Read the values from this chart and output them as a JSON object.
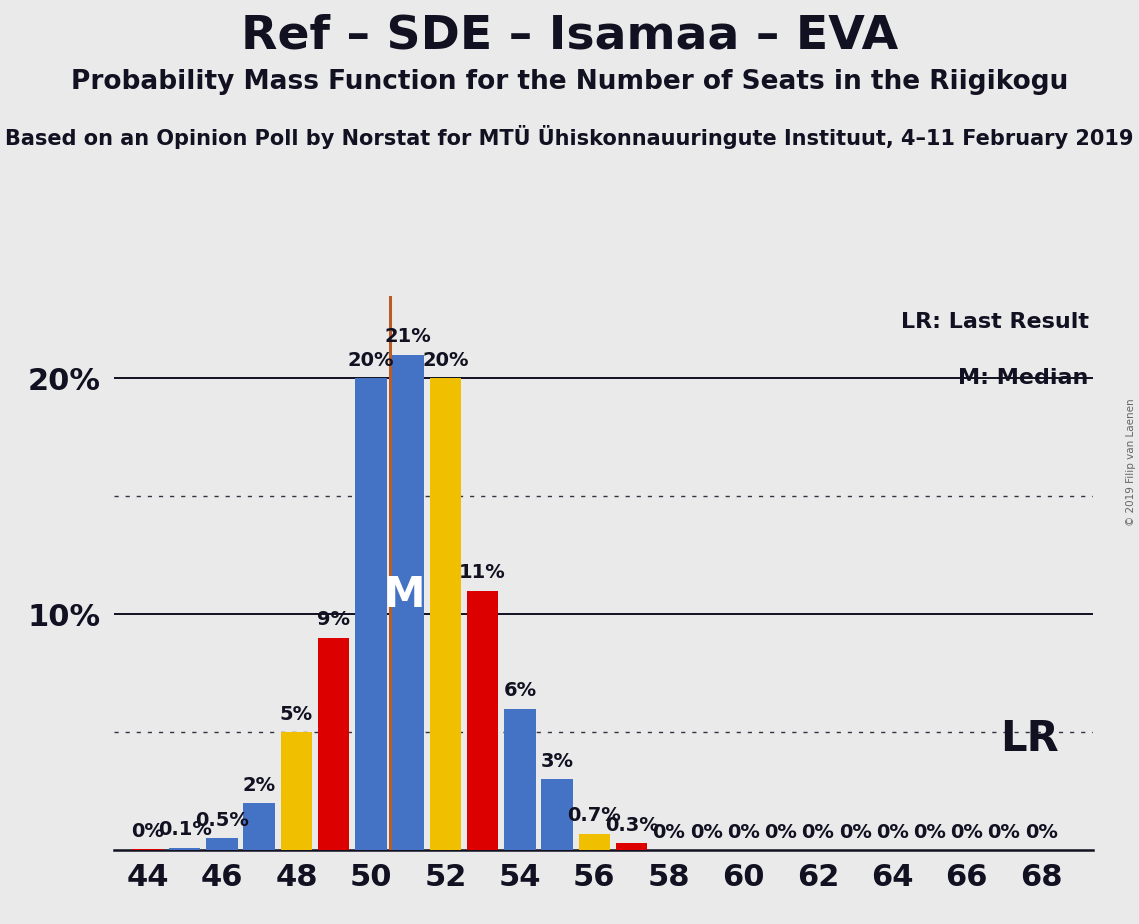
{
  "title": "Ref – SDE – Isamaa – EVA",
  "subtitle": "Probability Mass Function for the Number of Seats in the Riigikogu",
  "source_text": "Based on an Opinion Poll by Norstat for MTÜ Ühiskonnauuringute Instituut, 4–11 February 2019",
  "copyright_text": "© 2019 Filip van Laenen",
  "background_color": "#eaeaea",
  "lr_line_x": 50.5,
  "median_x": 51,
  "lr_color": "#b85c28",
  "bars": [
    {
      "x": 44,
      "value": 0.05,
      "color": "#dd0000",
      "label": "0%"
    },
    {
      "x": 45,
      "value": 0.1,
      "color": "#4472c4",
      "label": "0.1%"
    },
    {
      "x": 46,
      "value": 0.5,
      "color": "#4472c4",
      "label": "0.5%"
    },
    {
      "x": 47,
      "value": 2.0,
      "color": "#4472c4",
      "label": "2%"
    },
    {
      "x": 48,
      "value": 5.0,
      "color": "#f0c000",
      "label": "5%"
    },
    {
      "x": 49,
      "value": 9.0,
      "color": "#dd0000",
      "label": "9%"
    },
    {
      "x": 50,
      "value": 20.0,
      "color": "#4472c4",
      "label": "20%"
    },
    {
      "x": 51,
      "value": 21.0,
      "color": "#4472c4",
      "label": "21%"
    },
    {
      "x": 52,
      "value": 20.0,
      "color": "#f0c000",
      "label": "20%"
    },
    {
      "x": 53,
      "value": 11.0,
      "color": "#dd0000",
      "label": "11%"
    },
    {
      "x": 54,
      "value": 6.0,
      "color": "#4472c4",
      "label": "6%"
    },
    {
      "x": 55,
      "value": 3.0,
      "color": "#4472c4",
      "label": "3%"
    },
    {
      "x": 56,
      "value": 0.7,
      "color": "#f0c000",
      "label": "0.7%"
    },
    {
      "x": 57,
      "value": 0.3,
      "color": "#dd0000",
      "label": "0.3%"
    },
    {
      "x": 58,
      "value": 0.0,
      "color": "#4472c4",
      "label": "0%"
    },
    {
      "x": 59,
      "value": 0.0,
      "color": "#4472c4",
      "label": "0%"
    },
    {
      "x": 60,
      "value": 0.0,
      "color": "#4472c4",
      "label": "0%"
    },
    {
      "x": 61,
      "value": 0.0,
      "color": "#4472c4",
      "label": "0%"
    },
    {
      "x": 62,
      "value": 0.0,
      "color": "#4472c4",
      "label": "0%"
    },
    {
      "x": 63,
      "value": 0.0,
      "color": "#4472c4",
      "label": "0%"
    },
    {
      "x": 64,
      "value": 0.0,
      "color": "#4472c4",
      "label": "0%"
    },
    {
      "x": 65,
      "value": 0.0,
      "color": "#4472c4",
      "label": "0%"
    },
    {
      "x": 66,
      "value": 0.0,
      "color": "#4472c4",
      "label": "0%"
    },
    {
      "x": 67,
      "value": 0.0,
      "color": "#4472c4",
      "label": "0%"
    },
    {
      "x": 68,
      "value": 0.0,
      "color": "#4472c4",
      "label": "0%"
    }
  ],
  "xlim": [
    43.1,
    69.4
  ],
  "ylim": [
    0,
    23.5
  ],
  "xticks": [
    44,
    46,
    48,
    50,
    52,
    54,
    56,
    58,
    60,
    62,
    64,
    66,
    68
  ],
  "solid_hlines": [
    20,
    10
  ],
  "dotted_hlines": [
    15,
    5
  ],
  "bar_width": 0.85,
  "title_fontsize": 34,
  "subtitle_fontsize": 19,
  "source_fontsize": 15,
  "axis_tick_fontsize": 22,
  "bar_label_fontsize": 14,
  "legend_fontsize": 16,
  "lr_label": "LR: Last Result",
  "median_label": "M: Median",
  "lr_short": "LR"
}
